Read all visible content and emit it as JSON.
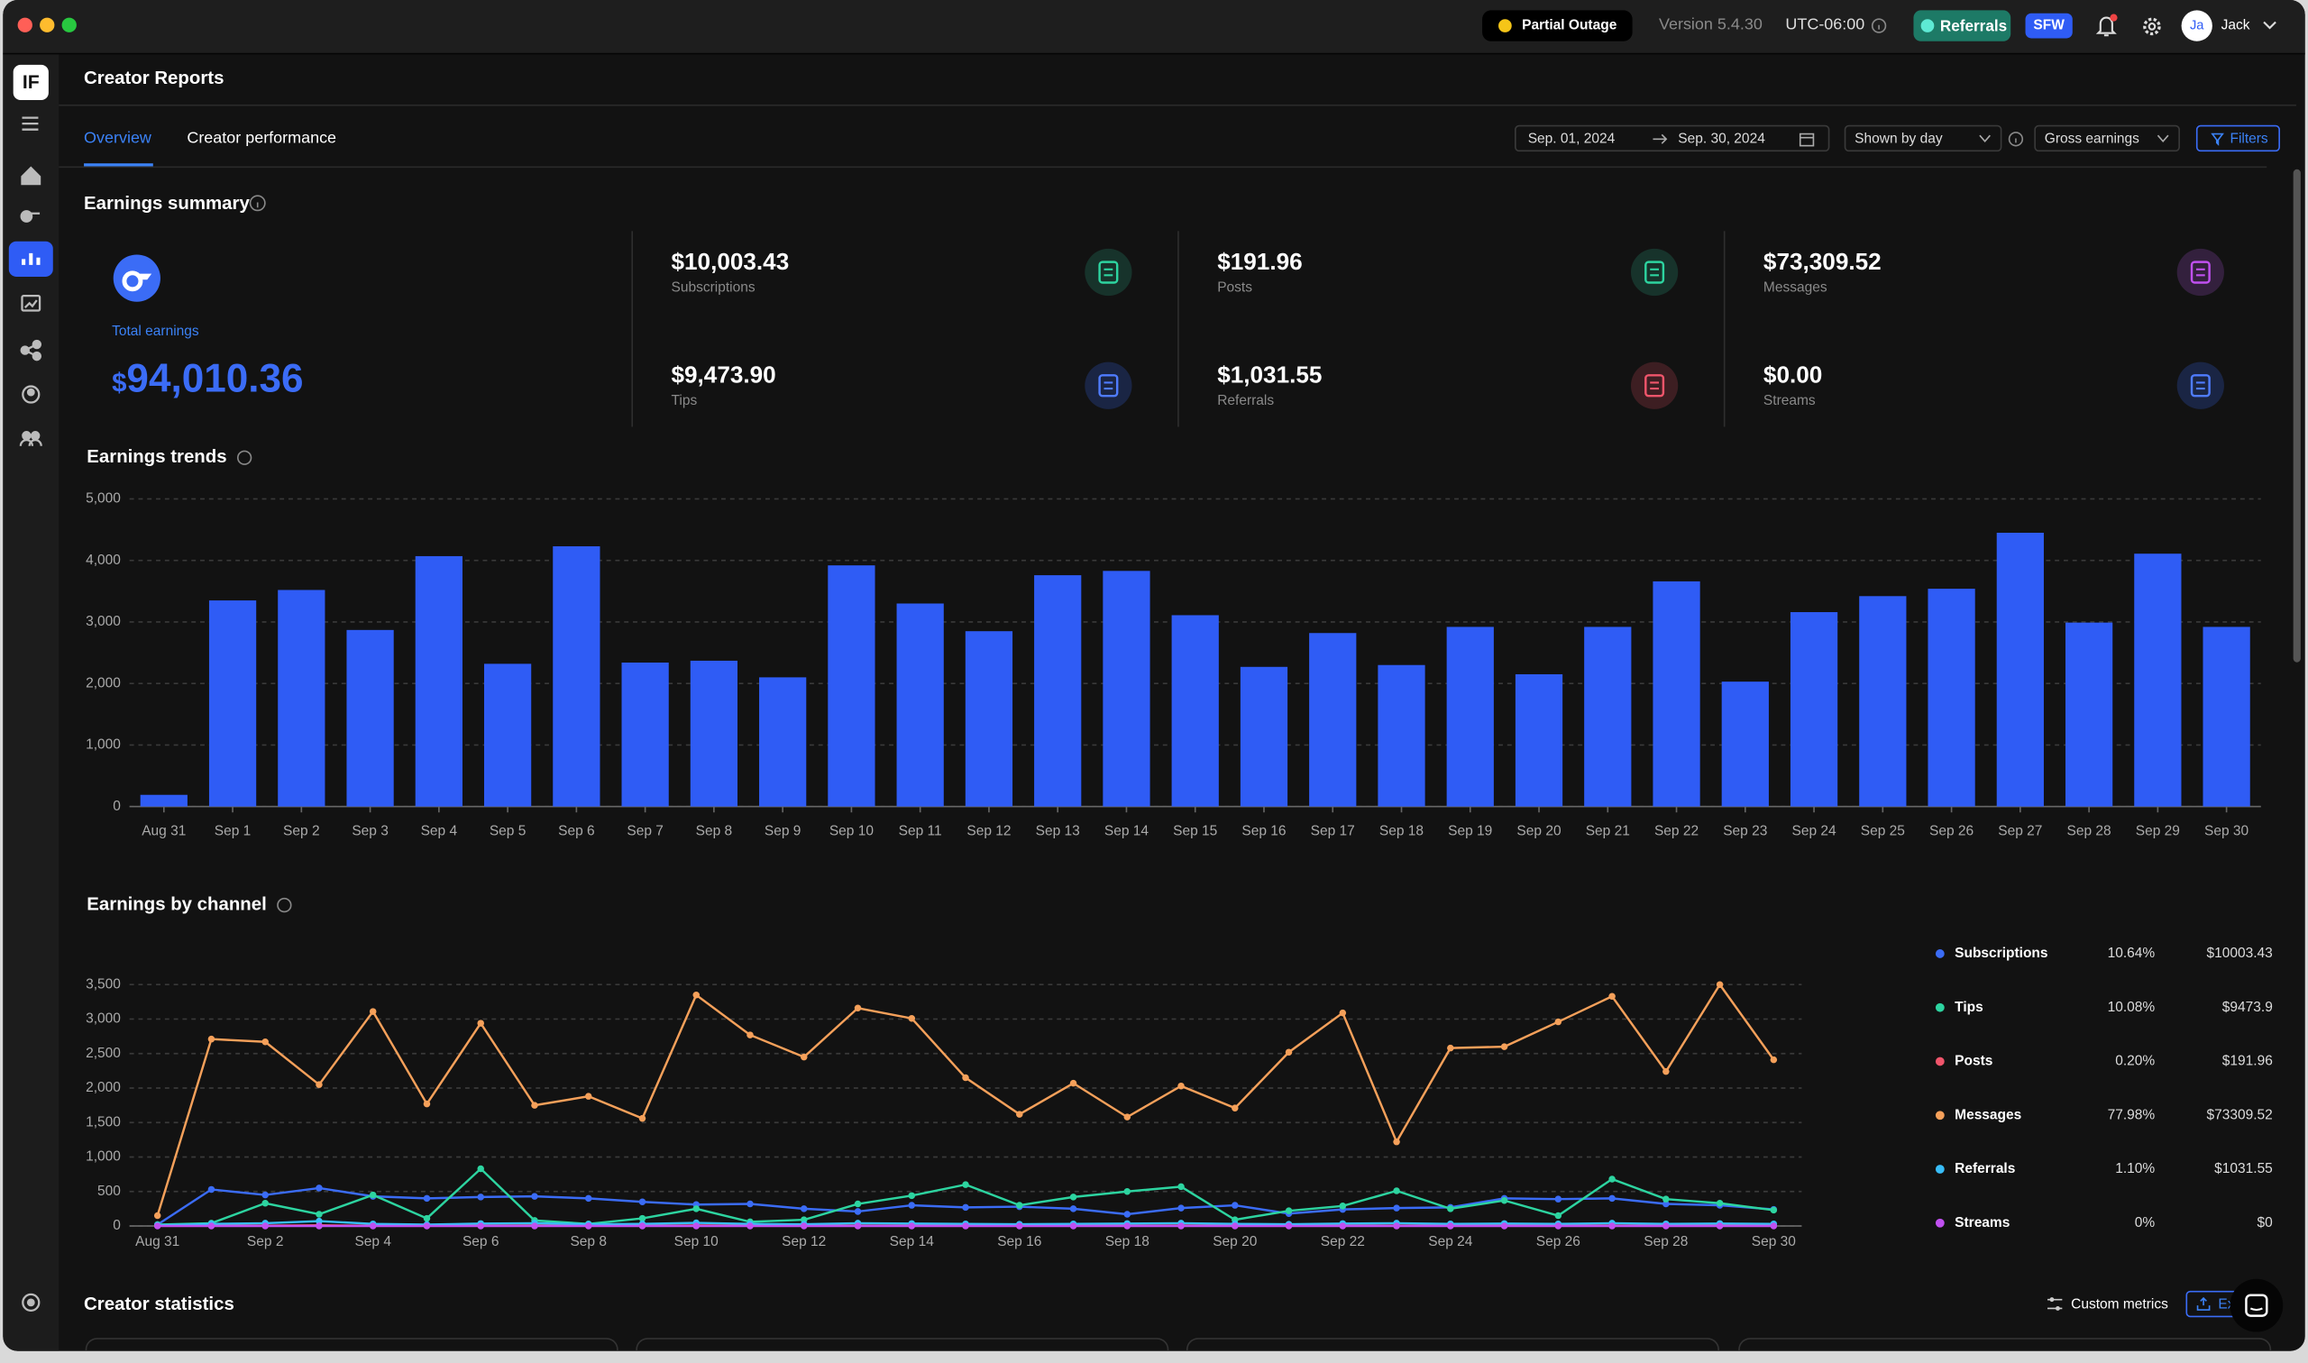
{
  "window": {
    "status": "Partial Outage",
    "version": "Version 5.4.30",
    "timezone": "UTC-06:00",
    "referrals_button": "Referrals",
    "sfw_badge": "SFW",
    "avatar_initials": "Ja",
    "user_name": "Jack",
    "sidebar_logo": "IF"
  },
  "page": {
    "title": "Creator Reports",
    "tabs": [
      "Overview",
      "Creator performance"
    ],
    "date_from": "Sep. 01, 2024",
    "date_to": "Sep. 30, 2024",
    "grouping": "Shown by day",
    "metric": "Gross earnings",
    "filters_button": "Filters"
  },
  "summary": {
    "title": "Earnings summary",
    "total_label": "Total earnings",
    "total_currency": "$",
    "total_amount": "94,010.36",
    "stats": [
      {
        "value": "$10,003.43",
        "label": "Subscriptions"
      },
      {
        "value": "$9,473.90",
        "label": "Tips"
      },
      {
        "value": "$191.96",
        "label": "Posts"
      },
      {
        "value": "$1,031.55",
        "label": "Referrals"
      },
      {
        "value": "$73,309.52",
        "label": "Messages"
      },
      {
        "value": "$0.00",
        "label": "Streams"
      }
    ]
  },
  "chart_data": [
    {
      "type": "bar",
      "title": "Earnings trends",
      "color": "#2f5cf5",
      "grid": true,
      "categories": [
        "Aug 31",
        "Sep 1",
        "Sep 2",
        "Sep 3",
        "Sep 4",
        "Sep 5",
        "Sep 6",
        "Sep 7",
        "Sep 8",
        "Sep 9",
        "Sep 10",
        "Sep 11",
        "Sep 12",
        "Sep 13",
        "Sep 14",
        "Sep 15",
        "Sep 16",
        "Sep 17",
        "Sep 18",
        "Sep 19",
        "Sep 20",
        "Sep 21",
        "Sep 22",
        "Sep 23",
        "Sep 24",
        "Sep 25",
        "Sep 26",
        "Sep 27",
        "Sep 28",
        "Sep 29",
        "Sep 30"
      ],
      "values": [
        190,
        3350,
        3520,
        2870,
        4070,
        2320,
        4230,
        2340,
        2370,
        2100,
        3920,
        3300,
        2850,
        3760,
        3830,
        3110,
        2270,
        2820,
        2300,
        2920,
        2150,
        2920,
        3660,
        2030,
        3160,
        3420,
        3540,
        4450,
        2990,
        4110,
        2920
      ],
      "ylim": [
        0,
        5000
      ],
      "yticks": [
        0,
        {
          "value": 1000,
          "label": "1,000"
        },
        {
          "value": 2000,
          "label": "2,000"
        },
        {
          "value": 3000,
          "label": "3,000"
        },
        {
          "value": 4000,
          "label": "4,000"
        },
        {
          "value": 5000,
          "label": "5,000"
        }
      ]
    },
    {
      "type": "line",
      "title": "Earnings by channel",
      "grid": true,
      "legend": "right",
      "categories": [
        "Aug 31",
        null,
        "Sep 2",
        null,
        "Sep 4",
        null,
        "Sep 6",
        null,
        "Sep 8",
        null,
        "Sep 10",
        null,
        "Sep 12",
        null,
        "Sep 14",
        null,
        "Sep 16",
        null,
        "Sep 18",
        null,
        "Sep 20",
        null,
        "Sep 22",
        null,
        "Sep 24",
        null,
        "Sep 26",
        null,
        "Sep 28",
        null,
        "Sep 30"
      ],
      "ylim": [
        0,
        3500
      ],
      "yticks": [
        0,
        500,
        {
          "value": 1000,
          "label": "1,000"
        },
        {
          "value": 1500,
          "label": "1,500"
        },
        {
          "value": 2000,
          "label": "2,000"
        },
        {
          "value": 2500,
          "label": "2,500"
        },
        {
          "value": 3000,
          "label": "3,000"
        },
        {
          "value": 3500,
          "label": "3,500"
        }
      ],
      "series": [
        {
          "name": "Subscriptions",
          "color": "#3b6cf6",
          "share": "10.64%",
          "total": "$10003.43",
          "values": [
            20,
            530,
            450,
            550,
            430,
            400,
            420,
            430,
            400,
            350,
            310,
            320,
            250,
            210,
            300,
            270,
            280,
            250,
            170,
            260,
            300,
            180,
            240,
            260,
            270,
            400,
            390,
            400,
            320,
            300,
            240
          ]
        },
        {
          "name": "Tips",
          "color": "#2dd4a0",
          "share": "10.08%",
          "total": "$9473.9",
          "values": [
            20,
            40,
            330,
            170,
            450,
            110,
            830,
            80,
            30,
            110,
            250,
            60,
            90,
            320,
            440,
            600,
            300,
            420,
            500,
            570,
            90,
            220,
            290,
            510,
            250,
            370,
            150,
            680,
            390,
            330,
            230
          ]
        },
        {
          "name": "Posts",
          "color": "#f0556b",
          "share": "0.20%",
          "total": "$191.96",
          "values": [
            5,
            8,
            6,
            10,
            4,
            7,
            5,
            9,
            6,
            5,
            8,
            6,
            7,
            5,
            6,
            4,
            8,
            6,
            5,
            7,
            6,
            9,
            5,
            6,
            7,
            5,
            8,
            6,
            7,
            5,
            6
          ]
        },
        {
          "name": "Messages",
          "color": "#f5a05a",
          "share": "77.98%",
          "total": "$73309.52",
          "values": [
            150,
            2710,
            2670,
            2050,
            3110,
            1770,
            2940,
            1750,
            1880,
            1560,
            3350,
            2770,
            2450,
            3160,
            3010,
            2150,
            1620,
            2070,
            1580,
            2030,
            1710,
            2520,
            3090,
            1220,
            2580,
            2600,
            2960,
            3330,
            2240,
            3500,
            2410
          ]
        },
        {
          "name": "Referrals",
          "color": "#38bdf8",
          "share": "1.10%",
          "total": "$1031.55",
          "values": [
            10,
            30,
            40,
            70,
            30,
            20,
            35,
            40,
            25,
            30,
            45,
            30,
            25,
            40,
            35,
            30,
            25,
            30,
            35,
            40,
            30,
            25,
            35,
            40,
            30,
            35,
            30,
            40,
            30,
            35,
            30
          ]
        },
        {
          "name": "Streams",
          "color": "#c050f0",
          "share": "0%",
          "total": "$0",
          "values": [
            0,
            0,
            0,
            0,
            0,
            0,
            0,
            0,
            0,
            0,
            0,
            0,
            0,
            0,
            0,
            0,
            0,
            0,
            0,
            0,
            0,
            0,
            0,
            0,
            0,
            0,
            0,
            0,
            0,
            0,
            0
          ]
        }
      ]
    }
  ],
  "statistics": {
    "title": "Creator statistics",
    "custom_metrics": "Custom metrics",
    "export_button": "Export"
  }
}
